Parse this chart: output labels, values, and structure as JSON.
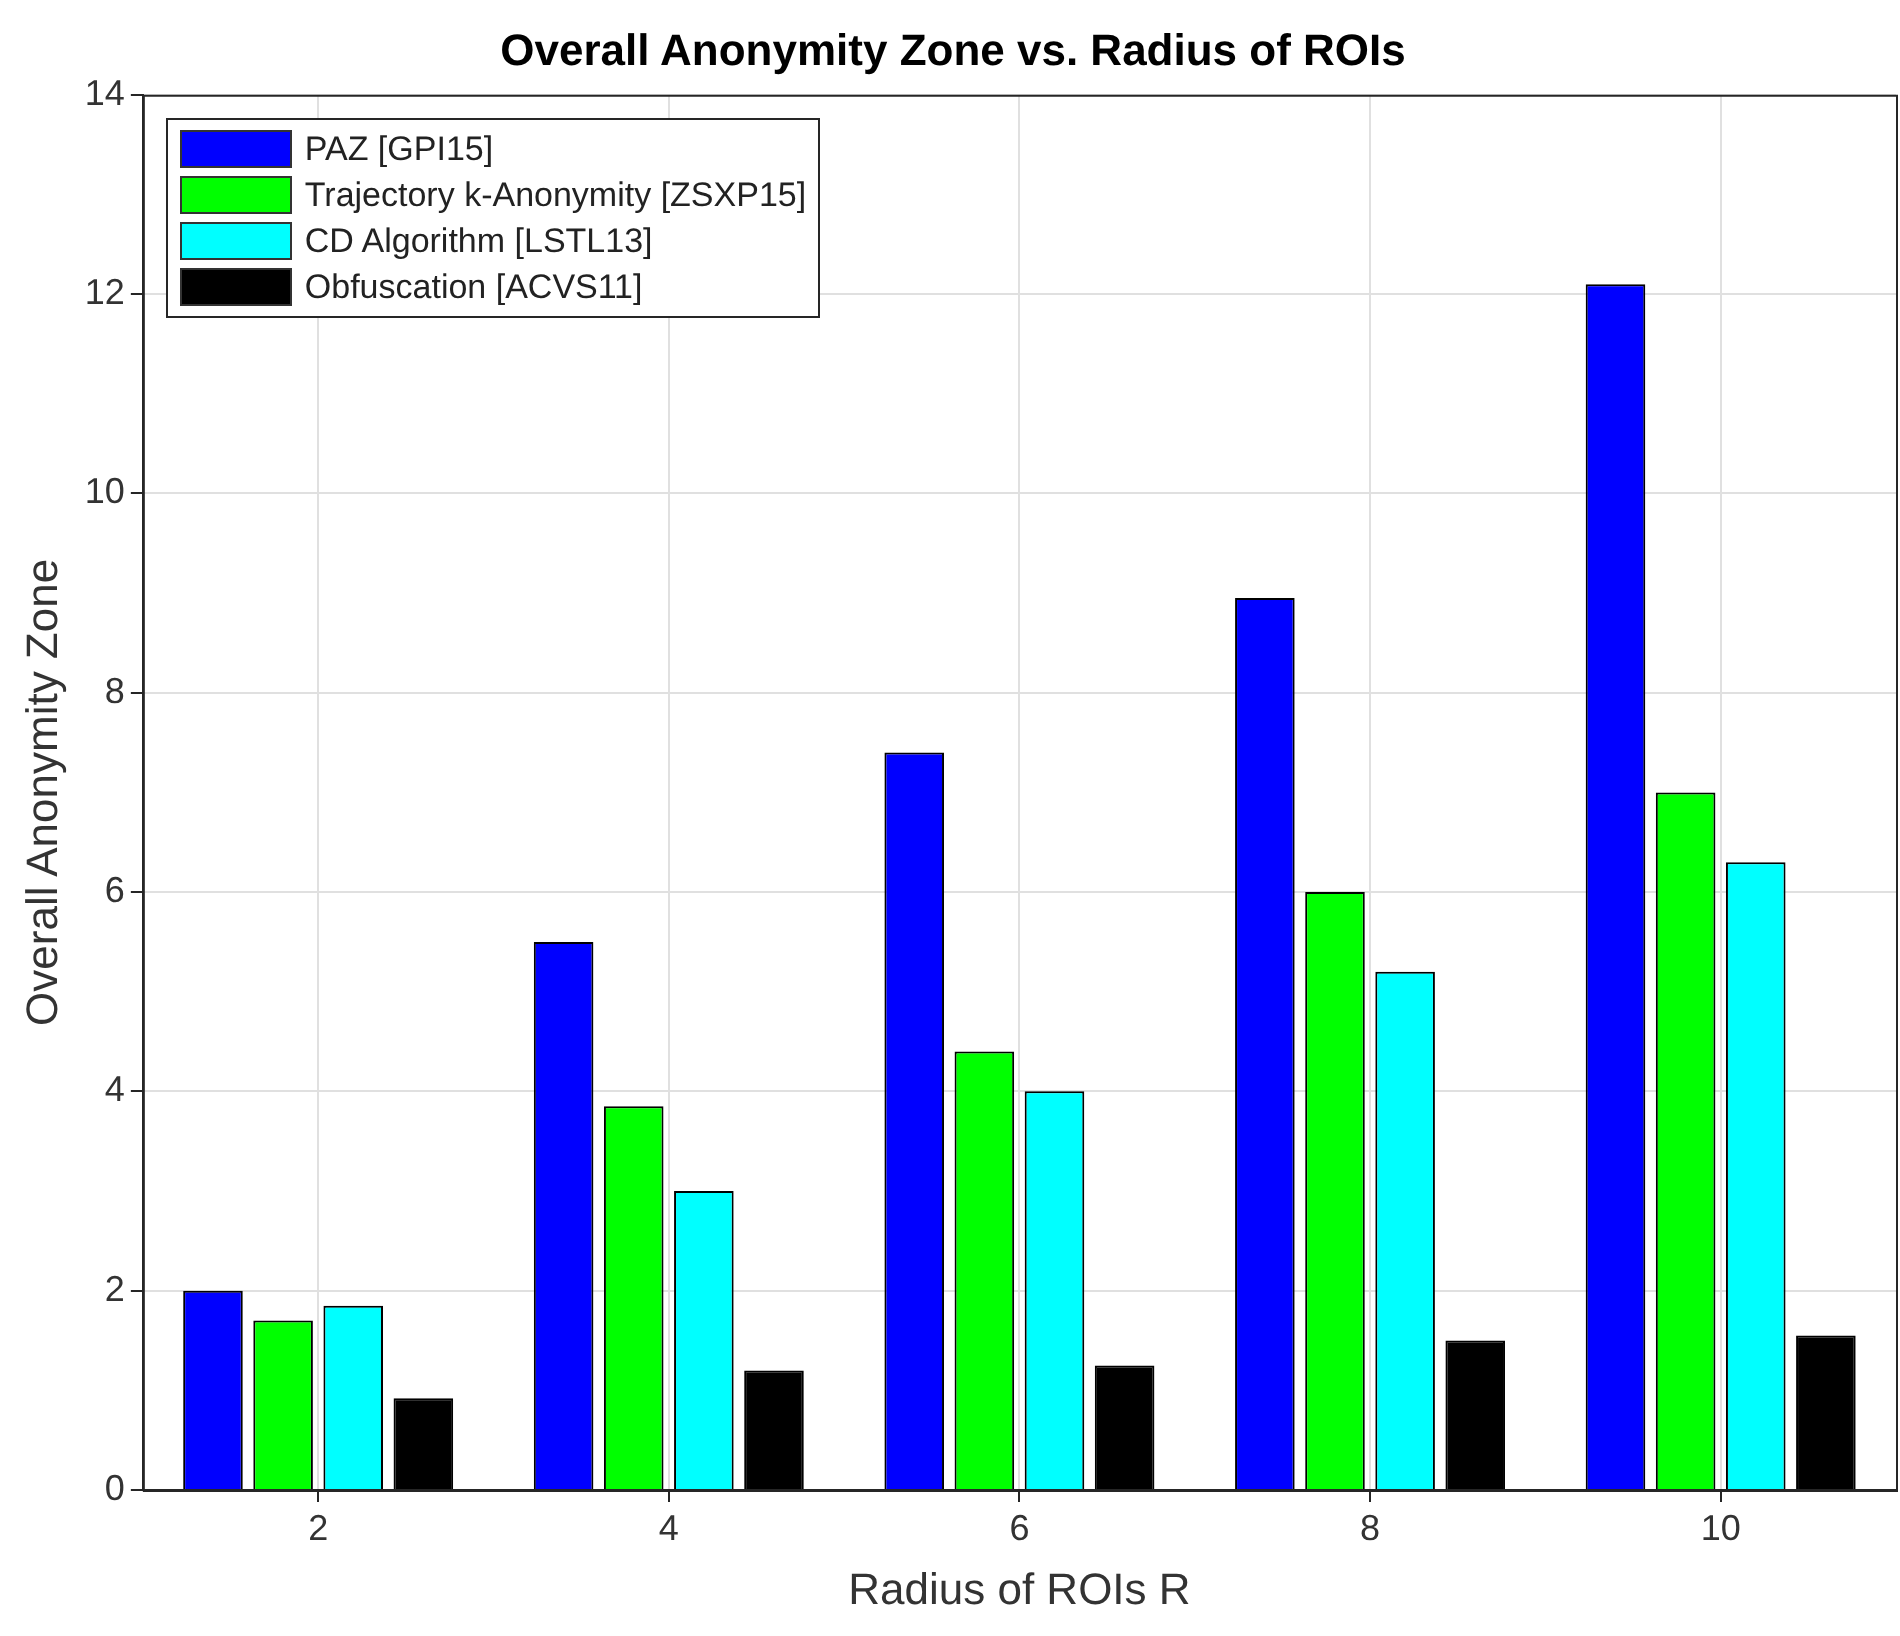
{
  "chart_data": {
    "type": "bar",
    "title": "Overall Anonymity Zone vs. Radius of ROIs",
    "xlabel": "Radius of ROIs R",
    "ylabel": "Overall Anonymity Zone",
    "categories": [
      "2",
      "4",
      "6",
      "8",
      "10"
    ],
    "series": [
      {
        "name": "PAZ [GPI15]",
        "color": "#0000ff",
        "values": [
          2.0,
          5.5,
          7.4,
          8.95,
          12.1
        ]
      },
      {
        "name": "Trajectory k-Anonymity [ZSXP15]",
        "color": "#00ff00",
        "values": [
          1.7,
          3.85,
          4.4,
          6.0,
          7.0
        ]
      },
      {
        "name": "CD Algorithm [LSTL13]",
        "color": "#00ffff",
        "values": [
          1.85,
          3.0,
          4.0,
          5.2,
          6.3
        ]
      },
      {
        "name": "Obfuscation [ACVS11]",
        "color": "#000000",
        "values": [
          0.92,
          1.2,
          1.25,
          1.5,
          1.55
        ]
      }
    ],
    "ylim": [
      0,
      14
    ],
    "yticks": [
      0,
      2,
      4,
      6,
      8,
      10,
      12,
      14
    ],
    "grid": true,
    "legend": "top left"
  }
}
